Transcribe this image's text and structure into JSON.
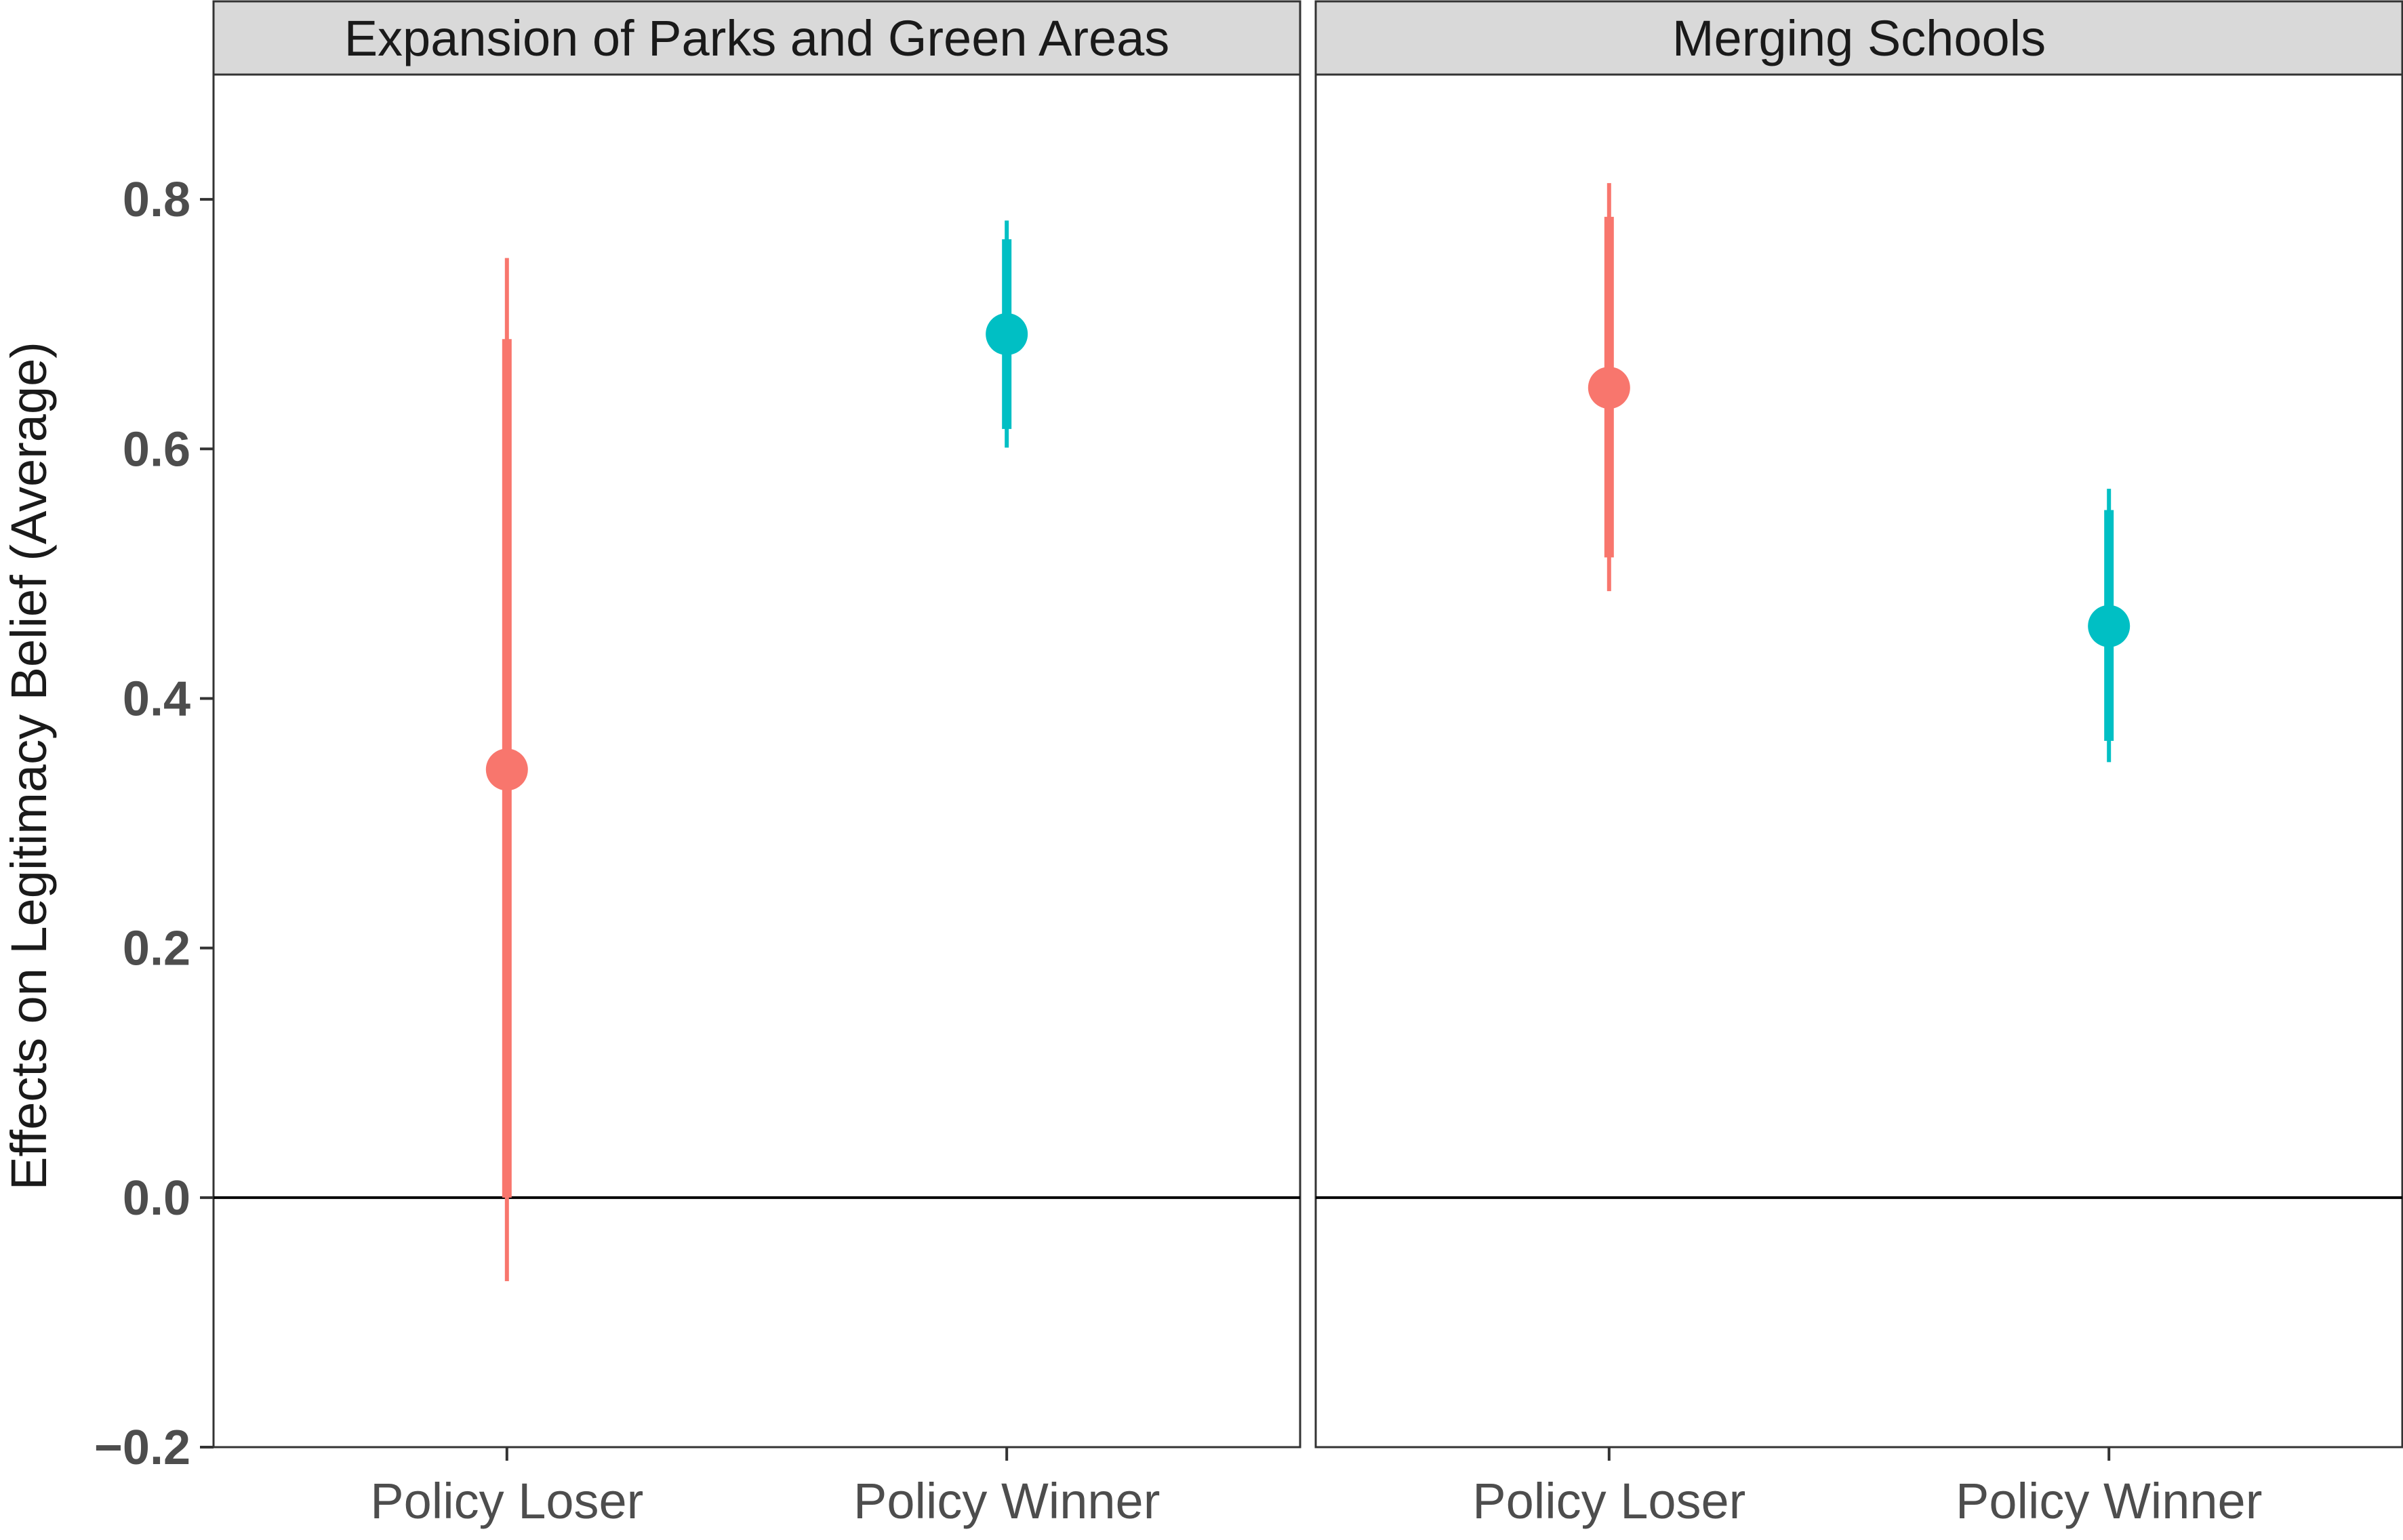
{
  "chart_data": {
    "type": "scatter",
    "subtype": "point-range",
    "ylabel": "Effects on Legitimacy Belief (Average)",
    "xlabel": "",
    "ylim": [
      -0.2,
      0.9
    ],
    "yticks": [
      -0.2,
      0.0,
      0.2,
      0.4,
      0.6,
      0.8
    ],
    "ytick_labels": [
      "−0.2",
      "0.0",
      "0.2",
      "0.4",
      "0.6",
      "0.8"
    ],
    "categories": [
      "Policy Loser",
      "Policy Winner"
    ],
    "reference_line": 0,
    "grid": false,
    "colors": {
      "Policy Loser": "#F8766D",
      "Policy Winner": "#00BFC4"
    },
    "panels": [
      {
        "title": "Expansion of Parks and Green Areas",
        "points": [
          {
            "category": "Policy Loser",
            "estimate": 0.343,
            "ci90": [
              0.0,
              0.688
            ],
            "ci95": [
              -0.067,
              0.753
            ]
          },
          {
            "category": "Policy Winner",
            "estimate": 0.692,
            "ci90": [
              0.616,
              0.768
            ],
            "ci95": [
              0.601,
              0.783
            ]
          }
        ]
      },
      {
        "title": "Merging Schools",
        "points": [
          {
            "category": "Policy Loser",
            "estimate": 0.649,
            "ci90": [
              0.513,
              0.786
            ],
            "ci95": [
              0.486,
              0.813
            ]
          },
          {
            "category": "Policy Winner",
            "estimate": 0.458,
            "ci90": [
              0.366,
              0.551
            ],
            "ci95": [
              0.349,
              0.568
            ]
          }
        ]
      }
    ]
  }
}
